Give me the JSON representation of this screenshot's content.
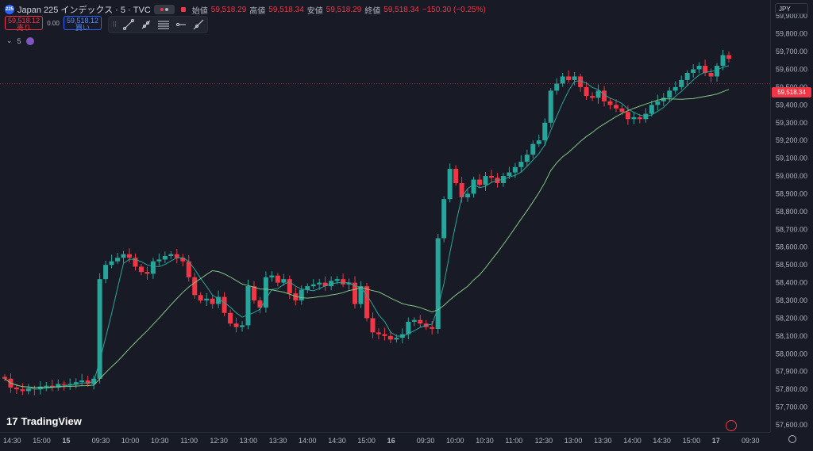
{
  "header": {
    "symbol_icon": "225",
    "symbol_title": "Japan 225 インデックス · 5 · TVC",
    "ohlc": [
      {
        "label": "始値",
        "value": "59,518.29"
      },
      {
        "label": "高値",
        "value": "59,518.34"
      },
      {
        "label": "安値",
        "value": "59,518.29"
      },
      {
        "label": "終値",
        "value": "59,518.34"
      }
    ],
    "change": "−150.30 (−0.25%)"
  },
  "trade": {
    "sell_price": "59,518.12",
    "sell_label": "売り",
    "spread": "0.00",
    "buy_price": "59,518.12",
    "buy_label": "買い"
  },
  "indicator": {
    "label": "5"
  },
  "currency": "JPY",
  "last_price": "59,518.34",
  "logo": "TradingView",
  "colors": {
    "up": "#26a69a",
    "down": "#f23645",
    "ma_fast": "#26a69a",
    "ma_slow": "#81c784",
    "background": "#181a25"
  },
  "icons": [
    "symbol-logo-icon",
    "eye-icon",
    "trend-line-icon",
    "ray-icon",
    "fib-icon",
    "horizontal-ray-icon",
    "extended-line-icon",
    "indicator-icon",
    "tradingview-logo-icon",
    "compass-icon",
    "settings-icon"
  ],
  "chart_data": {
    "type": "candlestick",
    "y_ticks": [
      59900,
      59800,
      59700,
      59600,
      59500,
      59400,
      59300,
      59200,
      59100,
      59000,
      58900,
      58800,
      58700,
      58600,
      58500,
      58400,
      58300,
      58200,
      58100,
      58000,
      57900,
      57800,
      57700,
      57600
    ],
    "y_tick_labels": [
      "59,900.00",
      "59,800.00",
      "59,700.00",
      "59,600.00",
      "59,500.00",
      "59,400.00",
      "59,300.00",
      "59,200.00",
      "59,100.00",
      "59,000.00",
      "58,900.00",
      "58,800.00",
      "58,700.00",
      "58,600.00",
      "58,500.00",
      "58,400.00",
      "58,300.00",
      "58,200.00",
      "58,100.00",
      "58,000.00",
      "57,900.00",
      "57,800.00",
      "57,700.00",
      "57,600.00"
    ],
    "ylim": [
      57560,
      59990
    ],
    "x_tick_labels": [
      "14:30",
      "15:00",
      "15",
      "09:30",
      "10:00",
      "10:30",
      "11:00",
      "12:30",
      "13:00",
      "13:30",
      "14:00",
      "14:30",
      "15:00",
      "16",
      "09:30",
      "10:00",
      "10:30",
      "11:00",
      "12:30",
      "13:00",
      "13:30",
      "14:00",
      "14:30",
      "15:00",
      "17",
      "09:30"
    ],
    "x_tick_bold": [
      "15",
      "16",
      "17"
    ],
    "candles_close": [
      57860,
      57810,
      57800,
      57790,
      57805,
      57800,
      57815,
      57820,
      57810,
      57830,
      57825,
      57830,
      57840,
      57850,
      57830,
      57860,
      58420,
      58500,
      58520,
      58540,
      58560,
      58540,
      58490,
      58460,
      58450,
      58520,
      58530,
      58550,
      58560,
      58540,
      58520,
      58430,
      58330,
      58300,
      58310,
      58280,
      58320,
      58230,
      58170,
      58150,
      58160,
      58380,
      58300,
      58260,
      58430,
      58440,
      58400,
      58420,
      58340,
      58300,
      58360,
      58380,
      58390,
      58400,
      58380,
      58410,
      58420,
      58390,
      58400,
      58280,
      58380,
      58200,
      58120,
      58110,
      58100,
      58080,
      58090,
      58110,
      58180,
      58190,
      58170,
      58150,
      58140,
      58650,
      58870,
      59040,
      58960,
      58880,
      58900,
      58980,
      58950,
      59000,
      58990,
      58960,
      59000,
      59020,
      59050,
      59080,
      59120,
      59180,
      59200,
      59300,
      59480,
      59520,
      59560,
      59540,
      59560,
      59500,
      59450,
      59440,
      59480,
      59420,
      59400,
      59380,
      59360,
      59320,
      59330,
      59320,
      59350,
      59400,
      59420,
      59440,
      59480,
      59500,
      59540,
      59580,
      59600,
      59620,
      59580,
      59560,
      59620,
      59680,
      59660
    ],
    "ma_fast_label": "",
    "ma_slow_label": ""
  }
}
